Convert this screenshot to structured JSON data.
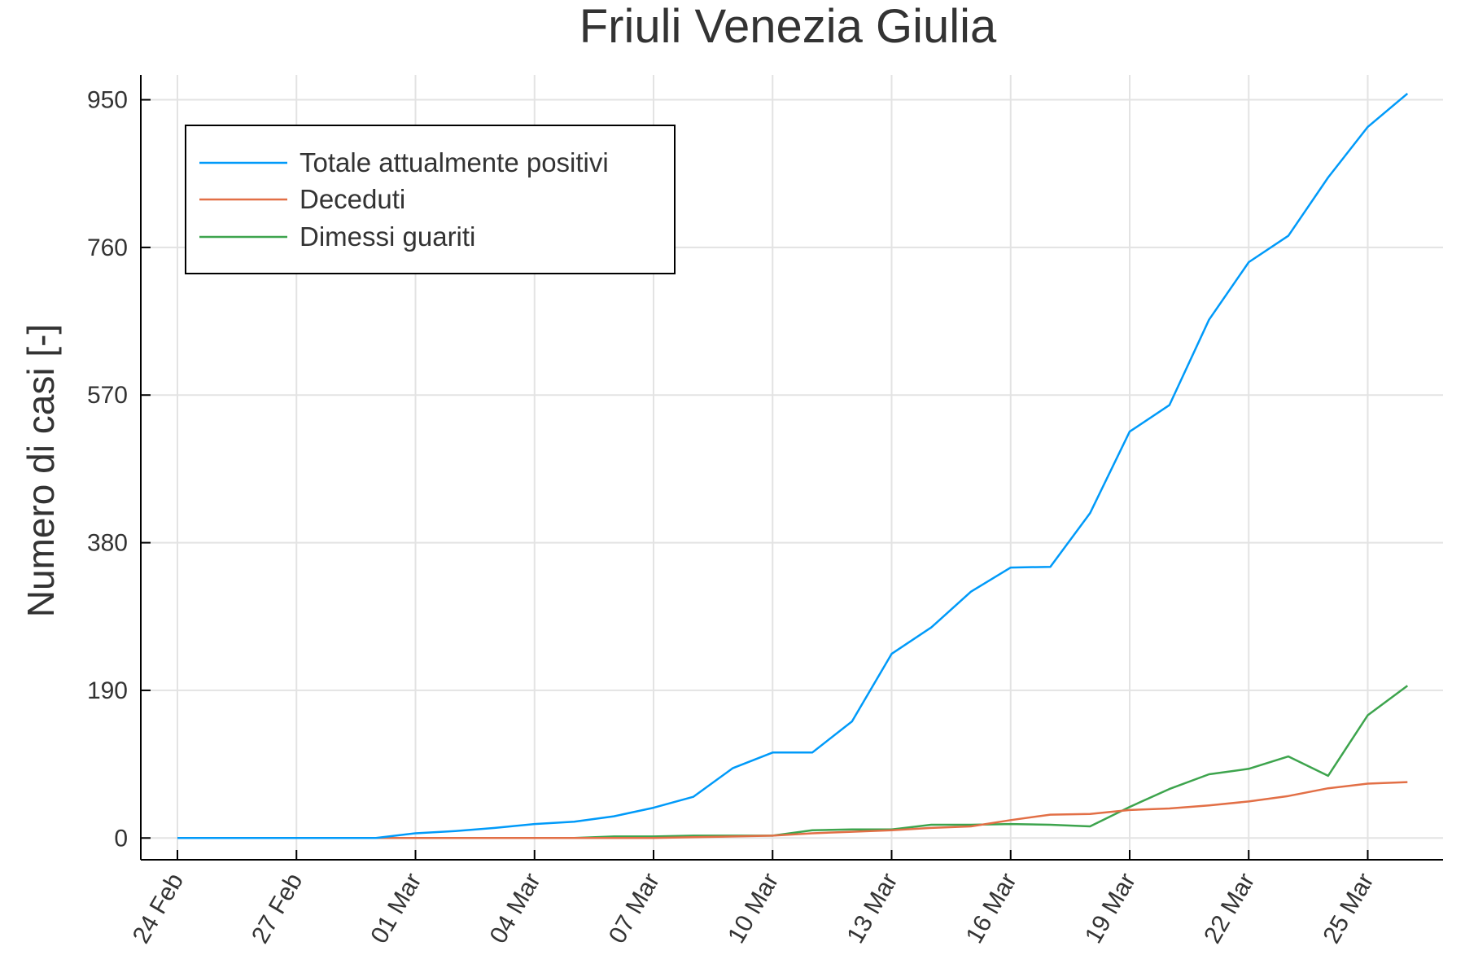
{
  "chart_data": {
    "type": "line",
    "title": "Friuli Venezia Giulia",
    "xlabel": "",
    "ylabel": "Numero di casi [-]",
    "x": [
      "24 Feb",
      "25 Feb",
      "26 Feb",
      "27 Feb",
      "28 Feb",
      "29 Feb",
      "01 Mar",
      "02 Mar",
      "03 Mar",
      "04 Mar",
      "05 Mar",
      "06 Mar",
      "07 Mar",
      "08 Mar",
      "09 Mar",
      "10 Mar",
      "11 Mar",
      "12 Mar",
      "13 Mar",
      "14 Mar",
      "15 Mar",
      "16 Mar",
      "17 Mar",
      "18 Mar",
      "19 Mar",
      "20 Mar",
      "21 Mar",
      "22 Mar",
      "23 Mar",
      "24 Mar",
      "25 Mar",
      "26 Mar"
    ],
    "x_ticks": [
      "24 Feb",
      "27 Feb",
      "01 Mar",
      "04 Mar",
      "07 Mar",
      "10 Mar",
      "13 Mar",
      "16 Mar",
      "19 Mar",
      "22 Mar",
      "25 Mar"
    ],
    "x_tick_index": [
      0,
      3,
      6,
      9,
      12,
      15,
      18,
      21,
      24,
      27,
      30
    ],
    "y_ticks": [
      0,
      190,
      380,
      570,
      760,
      950
    ],
    "ylim": [
      -28,
      982
    ],
    "grid": true,
    "legend_position": "top-left",
    "series": [
      {
        "name": "Totale attualmente positivi",
        "color": "#009af9",
        "values": [
          0,
          0,
          0,
          0,
          0,
          0,
          6,
          9,
          13,
          18,
          21,
          28,
          39,
          53,
          90,
          110,
          110,
          150,
          237,
          271,
          317,
          348,
          349,
          418,
          523,
          557,
          667,
          741,
          775,
          850,
          915,
          958
        ]
      },
      {
        "name": "Deceduti",
        "color": "#e26f46",
        "values": [
          0,
          0,
          0,
          0,
          0,
          0,
          0,
          0,
          0,
          0,
          0,
          0,
          0,
          1,
          2,
          3,
          6,
          8,
          10,
          13,
          15,
          23,
          30,
          31,
          36,
          38,
          42,
          47,
          54,
          64,
          70,
          72
        ]
      },
      {
        "name": "Dimessi guariti",
        "color": "#3da44d",
        "values": [
          0,
          0,
          0,
          0,
          0,
          0,
          0,
          0,
          0,
          0,
          0,
          2,
          2,
          3,
          3,
          3,
          10,
          11,
          11,
          17,
          17,
          18,
          17,
          15,
          40,
          63,
          82,
          89,
          105,
          80,
          158,
          196
        ]
      }
    ]
  }
}
